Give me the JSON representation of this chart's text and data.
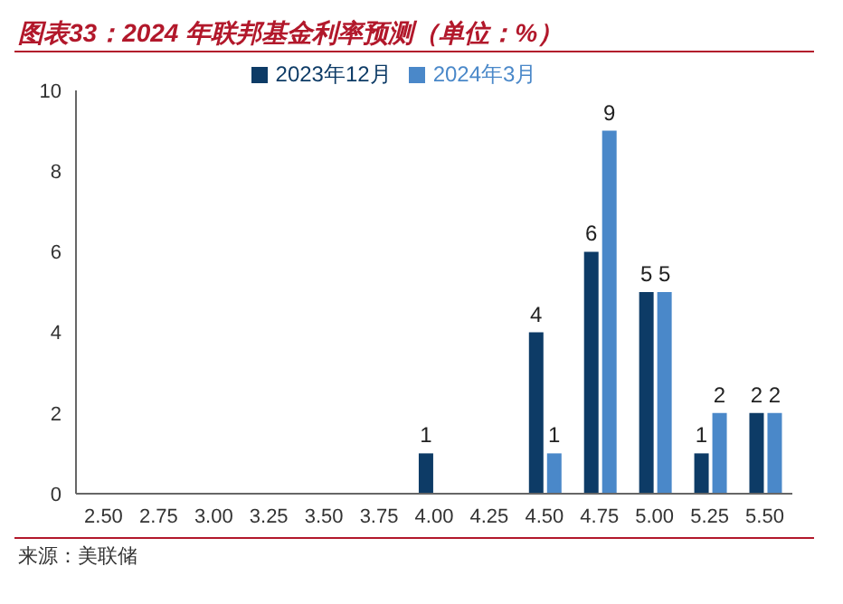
{
  "chart_data": {
    "type": "bar",
    "title": "图表33：2024 年联邦基金利率预测（单位：%）",
    "annotations": [
      "来源：美联储"
    ],
    "categories": [
      "2.50",
      "2.75",
      "3.00",
      "3.25",
      "3.50",
      "3.75",
      "4.00",
      "4.25",
      "4.50",
      "4.75",
      "5.00",
      "5.25",
      "5.50"
    ],
    "series": [
      {
        "name": "2023年12月",
        "color": "#0d3b66",
        "values": [
          0,
          0,
          0,
          0,
          0,
          0,
          1,
          0,
          4,
          6,
          5,
          1,
          2
        ],
        "value_labels": [
          null,
          null,
          null,
          null,
          null,
          null,
          "1",
          null,
          "4",
          "6",
          "5",
          "1",
          "2"
        ]
      },
      {
        "name": "2024年3月",
        "color": "#4a88c9",
        "values": [
          0,
          0,
          0,
          0,
          0,
          0,
          0,
          0,
          1,
          9,
          5,
          2,
          2
        ],
        "value_labels": [
          null,
          null,
          null,
          null,
          null,
          null,
          null,
          null,
          "1",
          "9",
          "5",
          "2",
          "2"
        ]
      }
    ],
    "ylim": [
      0,
      10
    ],
    "yticks": [
      0,
      2,
      4,
      6,
      8,
      10
    ],
    "grid": false,
    "legend": "top"
  }
}
